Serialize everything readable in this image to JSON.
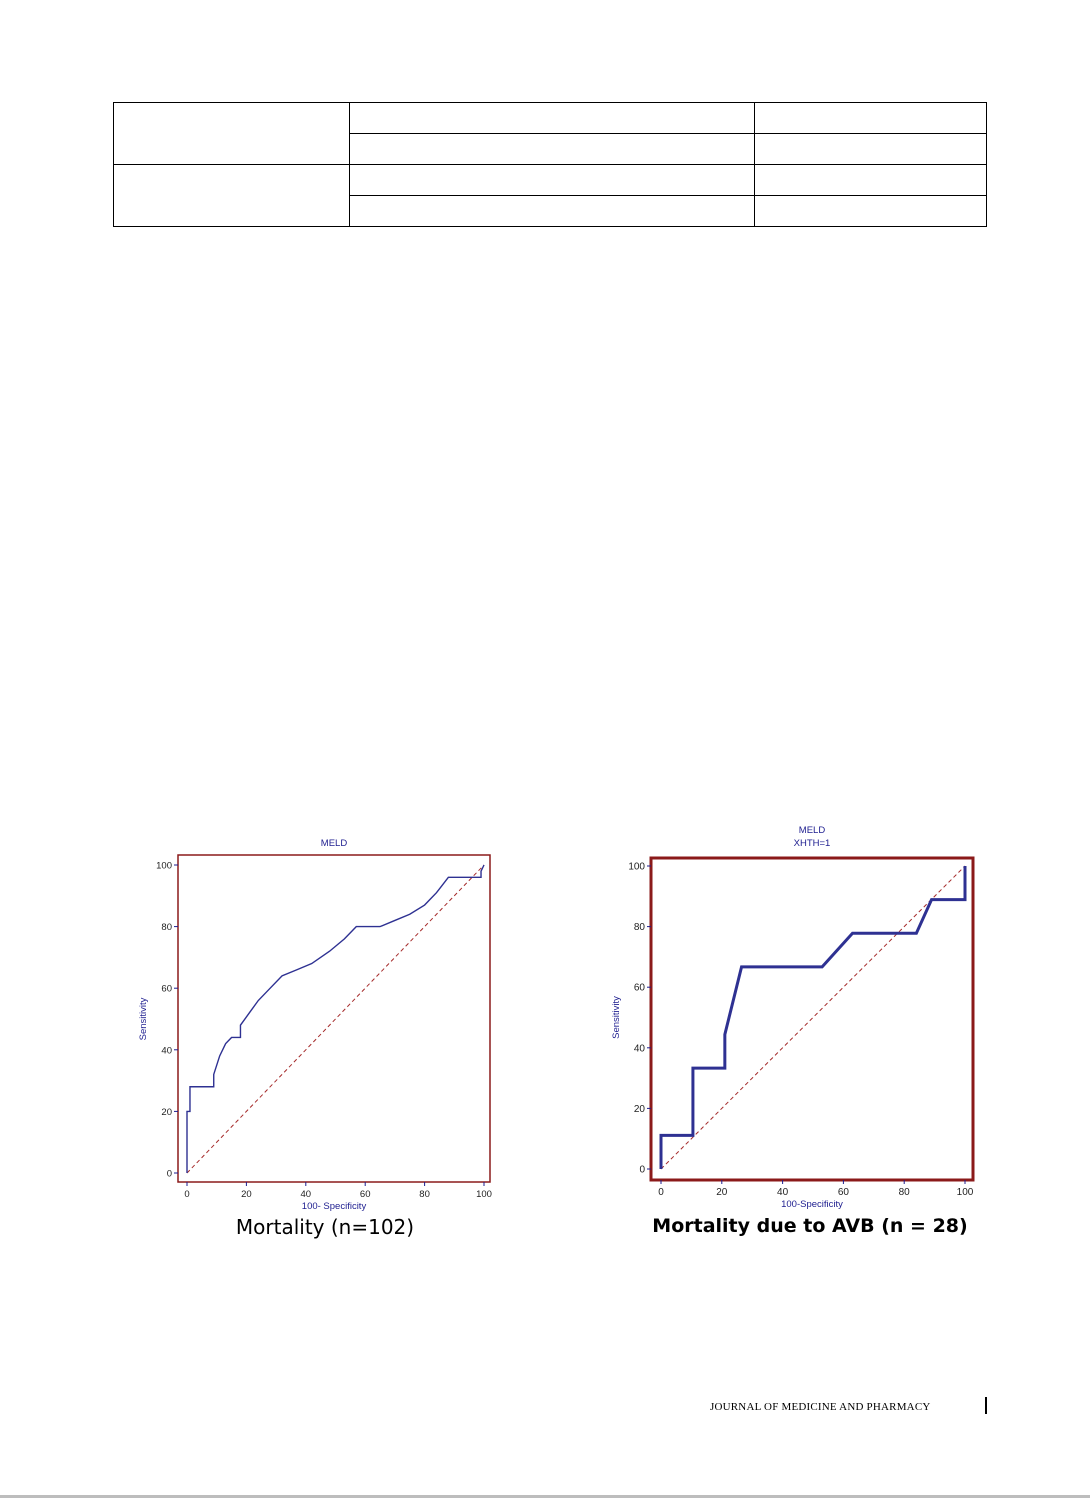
{
  "table": {
    "rows": [
      [
        "",
        "",
        ""
      ],
      [
        "",
        ""
      ],
      [
        "",
        "",
        ""
      ],
      [
        "",
        ""
      ]
    ]
  },
  "colors": {
    "frame": "#8b1a1a",
    "curve": "#2e3192",
    "diagonal": "#a52a2a",
    "axis_text": "#1d1d8f"
  },
  "chart_data": [
    {
      "type": "line",
      "title": "MELD",
      "subtitle": "",
      "xlabel": "100- Specificity",
      "ylabel": "Sensitivity",
      "caption": "Mortality (n=102)",
      "xlim": [
        0,
        100
      ],
      "ylim": [
        0,
        100
      ],
      "xticks": [
        0,
        20,
        40,
        60,
        80,
        100
      ],
      "yticks": [
        0,
        20,
        40,
        60,
        80,
        100
      ],
      "series": [
        {
          "x": [
            0,
            0,
            1,
            1,
            9,
            9,
            11,
            13,
            15,
            18,
            18,
            21,
            24,
            28,
            32,
            37,
            42,
            48,
            53,
            57,
            65,
            70,
            75,
            80,
            84,
            88,
            95,
            99,
            99,
            100
          ],
          "y": [
            0,
            20,
            20,
            28,
            28,
            32,
            38,
            42,
            44,
            44,
            48,
            52,
            56,
            60,
            64,
            66,
            68,
            72,
            76,
            80,
            80,
            82,
            84,
            87,
            91,
            96,
            96,
            96,
            98,
            100
          ]
        },
        {
          "x": [
            0,
            100
          ],
          "y": [
            0,
            100
          ]
        }
      ]
    },
    {
      "type": "line",
      "title": "MELD",
      "subtitle": "XHTH=1",
      "xlabel": "100-Specificity",
      "ylabel": "Sensitivity",
      "caption": "Mortality due to AVB (n = 28)",
      "xlim": [
        0,
        100
      ],
      "ylim": [
        0,
        100
      ],
      "xticks": [
        0,
        20,
        40,
        60,
        80,
        100
      ],
      "yticks": [
        0,
        20,
        40,
        60,
        80,
        100
      ],
      "series": [
        {
          "x": [
            0,
            0,
            10.5,
            10.5,
            21,
            21,
            26.5,
            53,
            63,
            84,
            89,
            89,
            100,
            100
          ],
          "y": [
            0,
            11.1,
            11.1,
            33.3,
            33.3,
            44.4,
            66.7,
            66.7,
            77.8,
            77.8,
            88.9,
            88.9,
            88.9,
            100
          ]
        },
        {
          "x": [
            0,
            100
          ],
          "y": [
            0,
            100
          ]
        }
      ]
    }
  ],
  "footer": {
    "journal": "JOURNAL OF MEDICINE AND PHARMACY"
  }
}
